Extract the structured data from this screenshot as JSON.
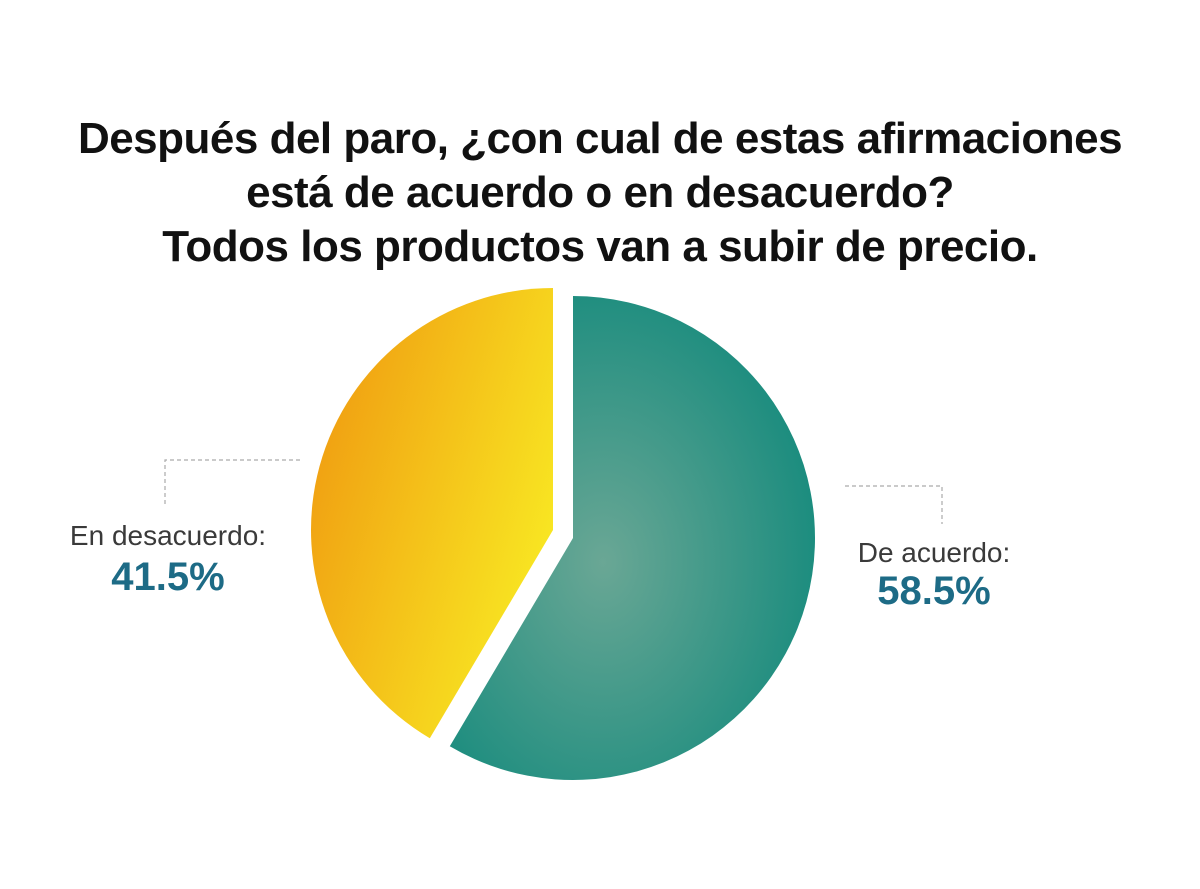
{
  "title_lines": [
    "Después del paro, ¿con cual de estas afirmaciones",
    "está de acuerdo o en desacuerdo?",
    "Todos los productos van a subir de precio."
  ],
  "colors": {
    "agree_center": "#6aa795",
    "agree_edge": "#1a8c7e",
    "disagree_orange": "#ef930f",
    "disagree_yellow": "#f8e622",
    "value_text": "#1d6b86",
    "leader_line": "#aaaaaa"
  },
  "chart_data": {
    "type": "pie",
    "title": "Después del paro, ¿con cual de estas afirmaciones está de acuerdo o en desacuerdo? Todos los productos van a subir de precio.",
    "slices": [
      {
        "label": "De acuerdo:",
        "value": 58.5,
        "value_label": "58.5%"
      },
      {
        "label": "En desacuerdo:",
        "value": 41.5,
        "value_label": "41.5%"
      }
    ]
  }
}
